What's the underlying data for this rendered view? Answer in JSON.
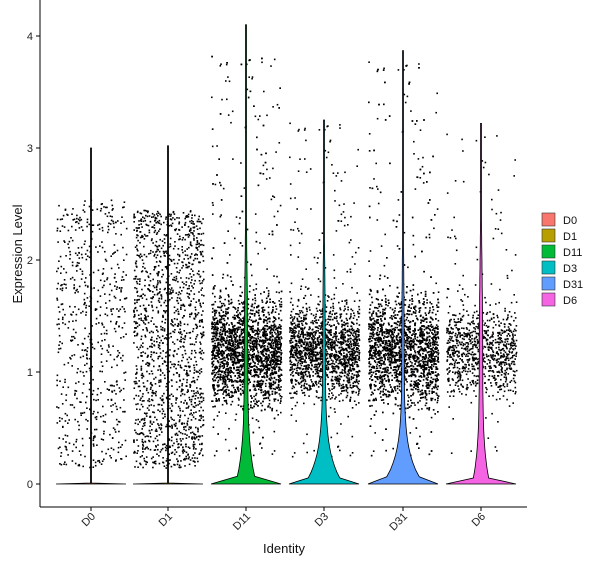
{
  "chart_data": {
    "type": "violin",
    "xlabel": "Identity",
    "ylabel": "Expression Level",
    "ylim": [
      -0.2,
      4.2
    ],
    "yticks": [
      0,
      1,
      2,
      3,
      4
    ],
    "categories": [
      "D0",
      "D1",
      "D11",
      "D3",
      "D31",
      "D6"
    ],
    "colors": [
      "#F8766D",
      "#B79F00",
      "#00BA38",
      "#00BFC4",
      "#619CFF",
      "#F564E3"
    ],
    "legend_position": "right",
    "grid": false,
    "series": [
      {
        "name": "D0",
        "max": 3.0,
        "point_density": 0.18,
        "point_max": 2.55,
        "zero_fraction": 0.95
      },
      {
        "name": "D1",
        "max": 3.02,
        "point_density": 0.5,
        "point_max": 2.45,
        "zero_fraction": 0.9
      },
      {
        "name": "D11",
        "max": 4.1,
        "point_density": 1.0,
        "point_max": 3.85,
        "zero_fraction": 0.3
      },
      {
        "name": "D3",
        "max": 3.25,
        "point_density": 0.6,
        "point_max": 3.25,
        "zero_fraction": 0.55
      },
      {
        "name": "D31",
        "max": 3.87,
        "point_density": 0.95,
        "point_max": 3.8,
        "zero_fraction": 0.6
      },
      {
        "name": "D6",
        "max": 3.22,
        "point_density": 0.3,
        "point_max": 3.15,
        "zero_fraction": 0.25
      }
    ]
  }
}
